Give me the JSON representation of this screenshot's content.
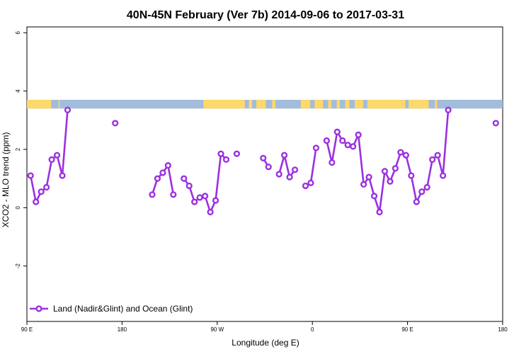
{
  "chart_data": {
    "type": "line",
    "title": "40N-45N February (Ver 7b)   2014-09-06 to 2017-03-31",
    "xlabel": "Longitude (deg E)",
    "ylabel": "XCO2 - MLO trend (ppm)",
    "x_ticks": [
      {
        "value": 90,
        "label": "90 E"
      },
      {
        "value": 180,
        "label": "180"
      },
      {
        "value": 270,
        "label": "90 W"
      },
      {
        "value": 360,
        "label": "0"
      },
      {
        "value": 450,
        "label": "90 E"
      },
      {
        "value": 540,
        "label": "180"
      }
    ],
    "y_ticks": [
      {
        "value": -2,
        "label": "-2"
      },
      {
        "value": 0,
        "label": "0"
      },
      {
        "value": 2,
        "label": "2"
      },
      {
        "value": 4,
        "label": "4"
      },
      {
        "value": 6,
        "label": "6"
      }
    ],
    "xlim": [
      90,
      540
    ],
    "ylim": [
      -3.9,
      6.2
    ],
    "grid": false,
    "legend_position": "bottom-left",
    "series": [
      {
        "name": "Land (Nadir&Glint) and Ocean (Glint)",
        "color": "#9b30e0",
        "segments": [
          [
            [
              93.5,
              1.1
            ],
            [
              98.5,
              0.2
            ],
            [
              103.5,
              0.55
            ],
            [
              108.5,
              0.7
            ],
            [
              113.5,
              1.65
            ],
            [
              118.5,
              1.8
            ],
            [
              123.5,
              1.1
            ],
            [
              128.5,
              3.35
            ]
          ],
          [
            [
              173.5,
              2.9
            ]
          ],
          [
            [
              208.5,
              0.45
            ],
            [
              213.5,
              1.0
            ],
            [
              218.5,
              1.2
            ],
            [
              223.5,
              1.45
            ],
            [
              228.5,
              0.45
            ]
          ],
          [
            [
              238.5,
              1.0
            ],
            [
              243.5,
              0.75
            ],
            [
              248.5,
              0.2
            ],
            [
              253.5,
              0.35
            ],
            [
              258.5,
              0.4
            ],
            [
              263.5,
              -0.15
            ],
            [
              268.5,
              0.25
            ],
            [
              273.5,
              1.85
            ],
            [
              278.5,
              1.65
            ]
          ],
          [
            [
              288.5,
              1.85
            ]
          ],
          [
            [
              313.5,
              1.7
            ],
            [
              318.5,
              1.4
            ]
          ],
          [
            [
              328.5,
              1.15
            ],
            [
              333.5,
              1.8
            ],
            [
              338.5,
              1.05
            ],
            [
              343.5,
              1.3
            ]
          ],
          [
            [
              353.5,
              0.75
            ],
            [
              358.5,
              0.85
            ],
            [
              363.5,
              2.05
            ]
          ],
          [
            [
              373.5,
              2.3
            ],
            [
              378.5,
              1.55
            ],
            [
              383.5,
              2.6
            ],
            [
              388.5,
              2.3
            ],
            [
              393.5,
              2.15
            ],
            [
              398.5,
              2.1
            ],
            [
              403.5,
              2.5
            ],
            [
              408.5,
              0.8
            ],
            [
              413.5,
              1.05
            ],
            [
              418.5,
              0.4
            ],
            [
              423.5,
              -0.15
            ],
            [
              428.5,
              1.25
            ],
            [
              433.5,
              0.9
            ],
            [
              438.5,
              1.35
            ],
            [
              443.5,
              1.9
            ],
            [
              448.5,
              1.8
            ],
            [
              453.5,
              1.1
            ],
            [
              458.5,
              0.2
            ],
            [
              463.5,
              0.55
            ],
            [
              468.5,
              0.7
            ],
            [
              473.5,
              1.65
            ],
            [
              478.5,
              1.8
            ],
            [
              483.5,
              1.1
            ],
            [
              488.5,
              3.35
            ]
          ],
          [
            [
              533.5,
              2.9
            ]
          ]
        ]
      }
    ],
    "surface_band": {
      "y_range": [
        3.4,
        3.7
      ],
      "land_color": "#fdd86a",
      "ocean_color": "#a2bcdc"
    }
  }
}
